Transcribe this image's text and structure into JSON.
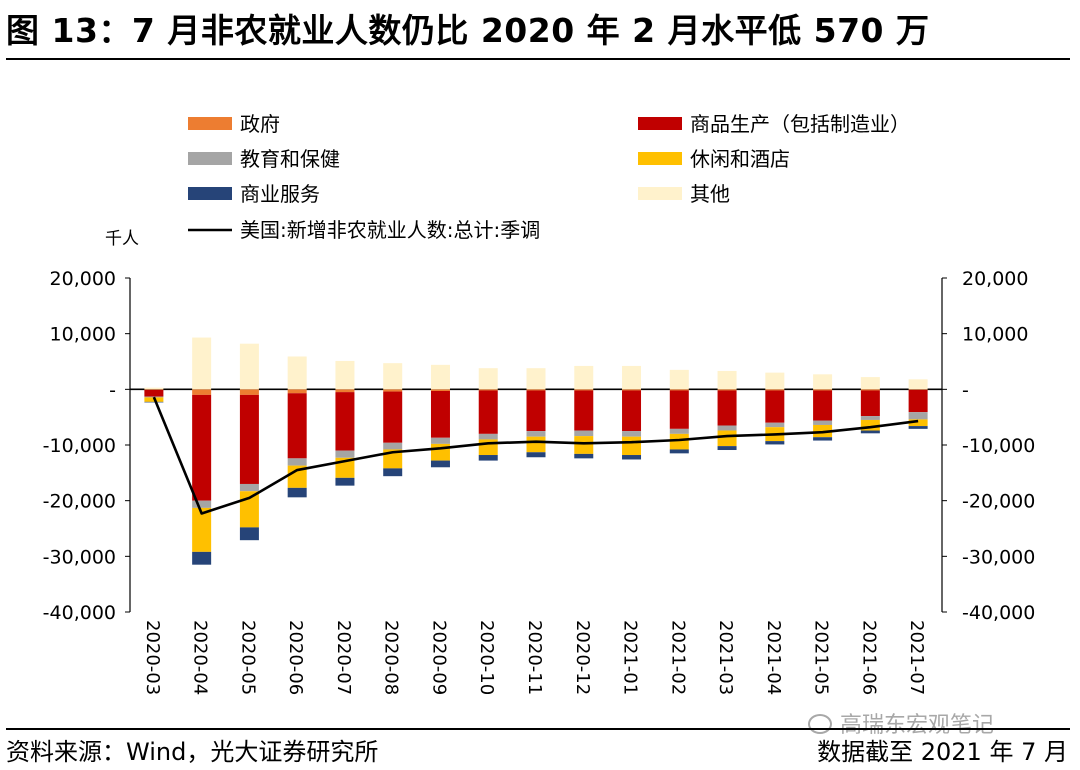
{
  "title": "图 13：7 月非农就业人数仍比 2020 年 2 月水平低 570 万",
  "source": "资料来源：Wind，光大证券研究所",
  "cutoff": "数据截至 2021 年 7 月",
  "watermark": "高瑞东宏观笔记",
  "chart_data": {
    "type": "bar",
    "stacked": true,
    "unit_label": "千人",
    "categories": [
      "2020-03",
      "2020-04",
      "2020-05",
      "2020-06",
      "2020-07",
      "2020-08",
      "2020-09",
      "2020-10",
      "2020-11",
      "2020-12",
      "2021-01",
      "2021-02",
      "2021-03",
      "2021-04",
      "2021-05",
      "2021-06",
      "2021-07"
    ],
    "ylim": [
      -40000,
      20000
    ],
    "yticks": [
      20000,
      10000,
      0,
      -10000,
      -20000,
      -30000,
      -40000
    ],
    "ytick_labels": [
      "20,000",
      "10,000",
      "-",
      "-10,000",
      "-20,000",
      "-30,000",
      "-40,000"
    ],
    "series": [
      {
        "name": "政府",
        "color": "#ED7D31",
        "values": [
          -100,
          -1000,
          -1000,
          -700,
          -500,
          -400,
          -300,
          -200,
          -200,
          -200,
          -200,
          -200,
          -200,
          -200,
          -200,
          -200,
          -100
        ]
      },
      {
        "name": "商品生产（包括制造业）",
        "color": "#C00000",
        "values": [
          -1200,
          -19000,
          -16000,
          -11700,
          -10500,
          -9200,
          -8400,
          -7800,
          -7300,
          -7200,
          -7300,
          -6900,
          -6300,
          -5800,
          -5400,
          -4600,
          -4000
        ]
      },
      {
        "name": "教育和保健",
        "color": "#A5A5A5",
        "values": [
          -150,
          -1300,
          -1300,
          -1300,
          -1300,
          -1200,
          -1100,
          -1000,
          -1000,
          -1000,
          -1000,
          -900,
          -900,
          -800,
          -800,
          -700,
          -1300
        ]
      },
      {
        "name": "休闲和酒店",
        "color": "#FFC000",
        "values": [
          -800,
          -7900,
          -6500,
          -4000,
          -3600,
          -3400,
          -3000,
          -2800,
          -2800,
          -3200,
          -3300,
          -2800,
          -2800,
          -2500,
          -2200,
          -1900,
          -1200
        ]
      },
      {
        "name": "商业服务",
        "color": "#264478",
        "values": [
          -100,
          -2300,
          -2300,
          -1700,
          -1400,
          -1400,
          -1200,
          -1000,
          -900,
          -800,
          -800,
          -700,
          -700,
          -600,
          -600,
          -500,
          -500
        ]
      },
      {
        "name": "其他",
        "color": "#FFF2CC",
        "values": [
          300,
          9300,
          8200,
          5900,
          5100,
          4700,
          4400,
          3800,
          3800,
          4200,
          4200,
          3500,
          3300,
          3000,
          2700,
          2200,
          1800
        ]
      }
    ],
    "line": {
      "name": "美国:新增非农就业人数:总计:季调",
      "color": "#000000",
      "values": [
        -1400,
        -22300,
        -19500,
        -14500,
        -12900,
        -11300,
        -10600,
        -9700,
        -9400,
        -9700,
        -9500,
        -9100,
        -8400,
        -8100,
        -7700,
        -6800,
        -5700
      ]
    },
    "legend_position": "top"
  }
}
